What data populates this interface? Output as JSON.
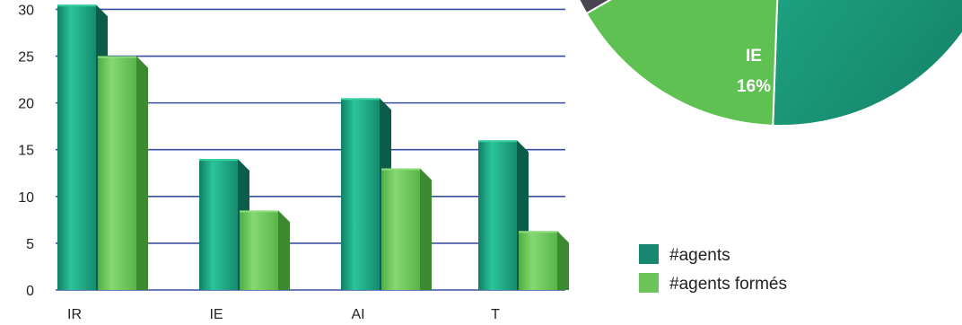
{
  "chart_data": [
    {
      "type": "bar",
      "categories": [
        "IR",
        "IE",
        "AI",
        "T"
      ],
      "series": [
        {
          "name": "#agents",
          "values": [
            30.5,
            14,
            20.5,
            16
          ],
          "color": "#1aa382"
        },
        {
          "name": "#agents formés",
          "values": [
            25,
            8.5,
            13,
            6.3
          ],
          "color": "#6cc45a"
        }
      ],
      "yticks": [
        "0",
        "5",
        "10",
        "15",
        "20",
        "25",
        "30"
      ],
      "ylim": [
        0,
        31
      ],
      "grid": true,
      "grid_color": "#3b4fa0",
      "legend": "bottom-right"
    },
    {
      "type": "pie",
      "partial": true,
      "slices": [
        {
          "label": "",
          "color": "#1c9e80"
        },
        {
          "label": "IE",
          "pct_label": "16%",
          "value": 16,
          "color": "#5fc152"
        },
        {
          "label": "",
          "color": "#4a4350"
        }
      ]
    }
  ],
  "legend": {
    "items": [
      {
        "label": "#agents",
        "color": "#17876f"
      },
      {
        "label": "#agents formés",
        "color": "#6cc45a"
      }
    ]
  }
}
